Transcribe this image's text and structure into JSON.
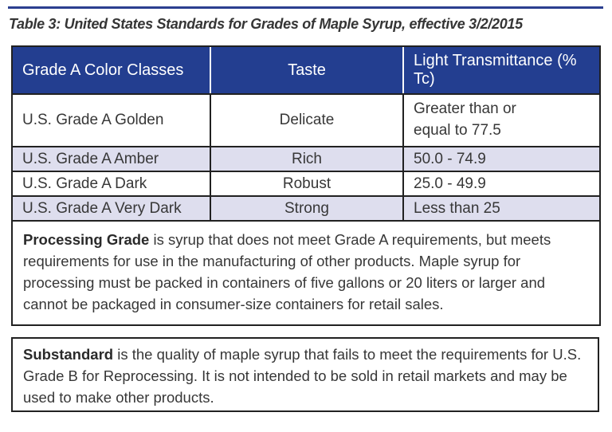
{
  "page": {
    "title": "Table 3: United States Standards for Grades of Maple Syrup, effective 3/2/2015"
  },
  "table": {
    "headers": [
      "Grade A Color Classes",
      "Taste",
      "Light Transmittance (% Tc)"
    ],
    "rows": [
      {
        "grade": "U.S. Grade A Golden",
        "taste": "Delicate",
        "transmittance": "Greater than or equal to 77.5"
      },
      {
        "grade": "U.S. Grade A Amber",
        "taste": "Rich",
        "transmittance": "50.0 - 74.9"
      },
      {
        "grade": "U.S. Grade A Dark",
        "taste": "Robust",
        "transmittance": "25.0 - 49.9"
      },
      {
        "grade": "U.S. Grade A Very Dark",
        "taste": "Strong",
        "transmittance": "Less than 25"
      }
    ],
    "processing_grade": {
      "term": "Processing Grade",
      "description": " is syrup that does not meet Grade A requirements, but meets requirements for use in the manufacturing of other products. Maple syrup for processing must be packed in containers of five gallons or 20 liters or larger and cannot be packaged in consumer-size containers for retail sales."
    },
    "substandard": {
      "term": "Substandard",
      "description": " is the quality of maple syrup that fails to meet the requirements for U.S. Grade B for Reprocessing. It is not intended to be sold in retail markets and may be used to make other products."
    }
  },
  "colors": {
    "header_bg": "#233E90",
    "header_text": "#FFFFFF",
    "alt_row_bg": "#DEDEEE",
    "top_rule": "#2B3F90",
    "border": "#212121",
    "body_text": "#373737"
  }
}
